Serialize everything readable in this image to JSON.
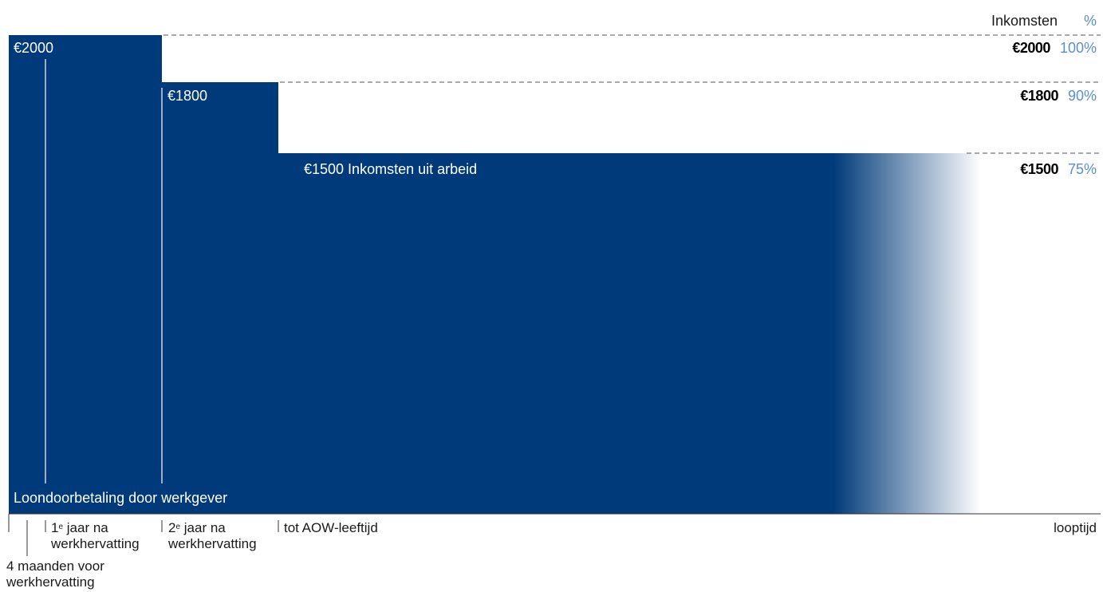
{
  "header": {
    "income_label": "Inkomsten",
    "percent_label": "%"
  },
  "colors": {
    "bar": "#003a7a",
    "percent": "#5b8fc8",
    "axis": "#333333"
  },
  "chart_data": {
    "type": "area",
    "title": "",
    "ylabel": "Inkomsten",
    "xlabel": "looptijd",
    "series": [
      {
        "name": "Loondoorbetaling door werkgever",
        "segments": [
          {
            "period": "tot 1e jaar na werkhervatting",
            "value": 2000,
            "label": "€2000"
          },
          {
            "period": "2e jaar na werkhervatting",
            "value": 1800,
            "label": "€1800"
          }
        ]
      },
      {
        "name": "Inkomsten uit arbeid",
        "segments": [
          {
            "period": "tot AOW-leeftijd",
            "value": 1500,
            "label": "€1500 Inkomsten uit arbeid"
          }
        ]
      }
    ],
    "levels": [
      {
        "amount": "€2000",
        "percent": "100%"
      },
      {
        "amount": "€1800",
        "percent": "90%"
      },
      {
        "amount": "€1500",
        "percent": "75%"
      }
    ],
    "footer_label": "Loondoorbetaling door werkgever",
    "ticks": {
      "t0": "4 maanden voor",
      "t0b": "werkhervatting",
      "t1_num": "1",
      "t1_sup": "e",
      "t1_rest": " jaar na",
      "t1b": "werkhervatting",
      "t2_num": "2",
      "t2_sup": "e",
      "t2_rest": " jaar na",
      "t2b": "werkhervatting",
      "t3": "tot AOW-leeftijd",
      "end": "looptijd"
    },
    "ylim": [
      0,
      2000
    ]
  }
}
